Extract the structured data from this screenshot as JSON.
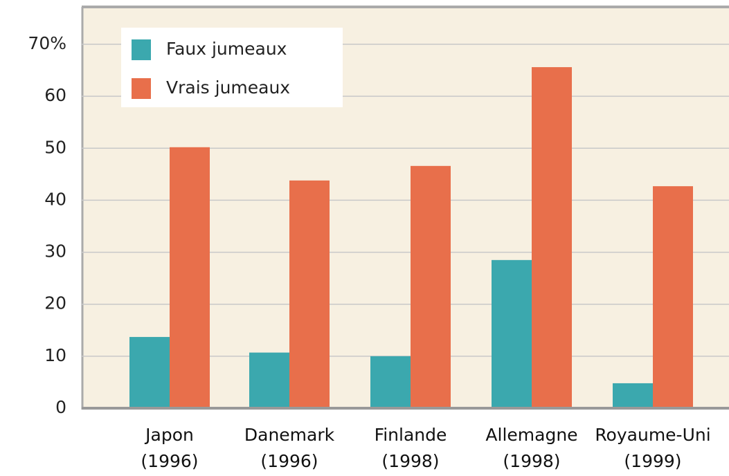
{
  "chart_data": {
    "type": "bar",
    "categories": [
      "Japon\n(1996)",
      "Danemark\n(1996)",
      "Finlande\n(1998)",
      "Allemagne\n(1998)",
      "Royaume-Uni\n(1999)"
    ],
    "series": [
      {
        "name": "Faux jumeaux",
        "color": "#3ba8ae",
        "values": [
          13.7,
          10.7,
          10,
          28.5,
          4.8
        ]
      },
      {
        "name": "Vrais jumeaux",
        "color": "#e86f4b",
        "values": [
          50.2,
          43.8,
          46.6,
          65.6,
          42.7
        ]
      }
    ],
    "ylim": [
      0,
      70
    ],
    "yticks": [
      0,
      10,
      20,
      30,
      40,
      50,
      60,
      {
        "value": 70,
        "label": "70%"
      }
    ],
    "grid": true,
    "legend": "top-left"
  }
}
